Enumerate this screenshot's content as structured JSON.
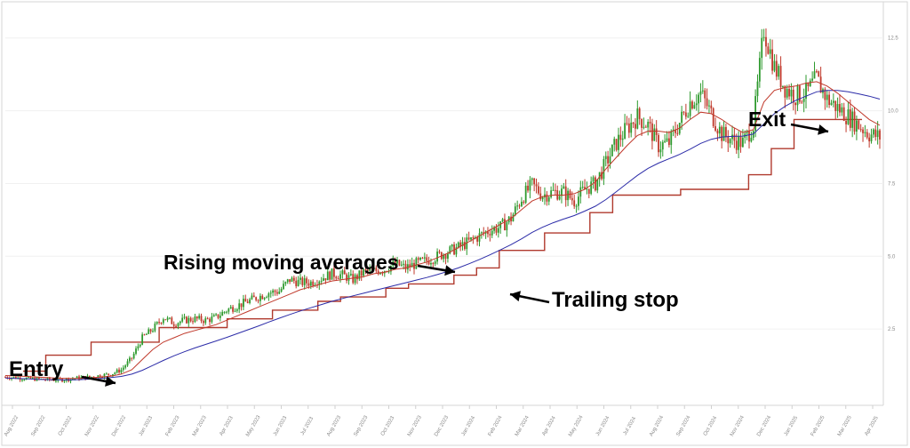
{
  "chart_data": {
    "type": "candlestick",
    "title": "",
    "xlabel": "",
    "ylabel": "",
    "ylim": [
      0,
      13.5
    ],
    "y_ticks": [
      "2.5",
      "5.0",
      "7.5",
      "10.0",
      "12.5"
    ],
    "x_ticks": [
      "Aug 2022",
      "Sep 2022",
      "Oct 2022",
      "Nov 2022",
      "Dec 2022",
      "Jan 2023",
      "Feb 2023",
      "Mar 2023",
      "Apr 2023",
      "May 2023",
      "Jun 2023",
      "Jul 2023",
      "Aug 2023",
      "Sep 2023",
      "Oct 2023",
      "Nov 2023",
      "Dec 2023",
      "Jan 2024",
      "Feb 2024",
      "Mar 2024",
      "Apr 2024",
      "May 2024",
      "Jun 2024",
      "Jul 2024",
      "Aug 2024",
      "Sep 2024",
      "Oct 2024",
      "Nov 2024",
      "Dec 2024",
      "Jan 2025",
      "Feb 2025",
      "Mar 2025",
      "Apr 2025"
    ],
    "price_close": [
      0.85,
      0.83,
      0.8,
      0.78,
      0.76,
      0.75,
      0.78,
      0.82,
      0.85,
      0.9,
      0.95,
      1.1,
      1.5,
      2.2,
      2.5,
      2.9,
      2.7,
      2.8,
      2.85,
      2.8,
      2.9,
      3.15,
      3.3,
      3.45,
      3.6,
      3.75,
      3.8,
      4.2,
      4.1,
      4.1,
      4.25,
      4.4,
      4.35,
      4.2,
      4.45,
      4.5,
      4.55,
      4.75,
      4.6,
      4.75,
      4.85,
      5.0,
      5.15,
      5.3,
      5.5,
      5.7,
      5.9,
      6.0,
      6.3,
      7.0,
      7.45,
      7.1,
      7.2,
      7.2,
      6.9,
      7.3,
      7.5,
      8.2,
      8.9,
      9.4,
      9.8,
      9.5,
      8.8,
      8.9,
      9.6,
      10.3,
      10.6,
      9.9,
      9.2,
      9.0,
      8.9,
      9.5,
      12.8,
      11.5,
      10.8,
      10.5,
      10.6,
      11.1,
      10.4,
      10.1,
      9.8,
      9.5,
      9.2,
      9.1
    ],
    "ma_fast": [
      0.9,
      0.89,
      0.87,
      0.85,
      0.83,
      0.81,
      0.8,
      0.8,
      0.82,
      0.85,
      0.88,
      0.95,
      1.1,
      1.45,
      1.8,
      2.05,
      2.2,
      2.35,
      2.45,
      2.55,
      2.65,
      2.8,
      2.95,
      3.1,
      3.25,
      3.4,
      3.55,
      3.7,
      3.85,
      3.95,
      4.05,
      4.15,
      4.2,
      4.25,
      4.3,
      4.4,
      4.45,
      4.55,
      4.6,
      4.7,
      4.8,
      4.95,
      5.1,
      5.3,
      5.5,
      5.7,
      5.9,
      6.1,
      6.3,
      6.6,
      6.9,
      7.05,
      7.1,
      7.1,
      7.15,
      7.3,
      7.55,
      8.0,
      8.4,
      8.8,
      9.15,
      9.3,
      9.3,
      9.25,
      9.4,
      9.7,
      9.95,
      9.9,
      9.7,
      9.45,
      9.25,
      9.35,
      10.3,
      10.7,
      10.8,
      10.85,
      10.95,
      11.0,
      10.85,
      10.6,
      10.3,
      10.0,
      9.7,
      9.5
    ],
    "ma_slow": [
      0.82,
      0.8,
      0.79,
      0.77,
      0.76,
      0.75,
      0.75,
      0.76,
      0.78,
      0.8,
      0.83,
      0.87,
      0.95,
      1.08,
      1.25,
      1.42,
      1.58,
      1.72,
      1.85,
      1.97,
      2.09,
      2.21,
      2.34,
      2.47,
      2.6,
      2.74,
      2.87,
      3.0,
      3.12,
      3.23,
      3.34,
      3.45,
      3.55,
      3.64,
      3.73,
      3.82,
      3.91,
      4.0,
      4.09,
      4.18,
      4.27,
      4.37,
      4.48,
      4.6,
      4.74,
      4.89,
      5.05,
      5.22,
      5.4,
      5.6,
      5.82,
      6.0,
      6.15,
      6.28,
      6.4,
      6.55,
      6.72,
      6.95,
      7.22,
      7.5,
      7.78,
      8.02,
      8.2,
      8.35,
      8.5,
      8.68,
      8.88,
      9.02,
      9.1,
      9.12,
      9.13,
      9.2,
      9.55,
      9.9,
      10.15,
      10.35,
      10.5,
      10.65,
      10.7,
      10.7,
      10.65,
      10.58,
      10.5,
      10.4
    ],
    "trailing_stop": [
      1.05,
      1.6,
      1.6,
      2.05,
      2.05,
      2.05,
      2.55,
      2.55,
      2.55,
      2.85,
      2.85,
      3.15,
      3.15,
      3.45,
      3.6,
      3.6,
      3.9,
      4.05,
      4.05,
      4.35,
      4.6,
      5.2,
      5.2,
      5.8,
      5.8,
      6.5,
      7.1,
      7.1,
      7.1,
      7.3,
      7.3,
      7.3,
      7.8,
      8.7,
      9.7,
      9.7,
      9.7,
      9.7
    ],
    "annotations": [
      "Entry",
      "Rising moving averages",
      "Trailing stop",
      "Exit"
    ]
  }
}
